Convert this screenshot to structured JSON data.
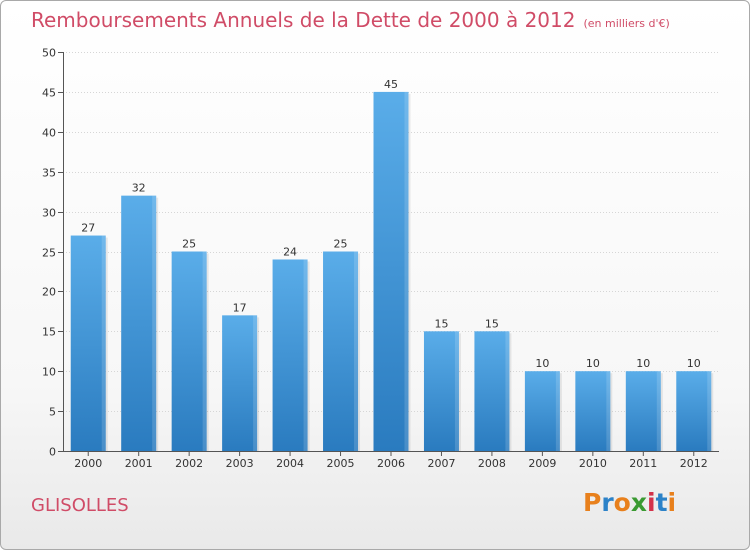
{
  "header": {
    "title": "Remboursements Annuels de la Dette de 2000 à 2012",
    "subtitle": "(en milliers d'€)"
  },
  "footer": {
    "commune": "GLISOLLES",
    "brand_letters": [
      "P",
      "r",
      "o",
      "x",
      "i",
      "t",
      "i"
    ],
    "brand_colors": [
      "#e8801c",
      "#2c82c8",
      "#e8801c",
      "#3a9a32",
      "#d4324a",
      "#2c82c8",
      "#e8801c"
    ]
  },
  "colors": {
    "title": "#d04c67",
    "bar_light": "#5aade9",
    "bar_dark": "#2a7bbf",
    "axis": "#555555",
    "grid": "#d6d6d6"
  },
  "chart_data": {
    "type": "bar",
    "categories": [
      "2000",
      "2001",
      "2002",
      "2003",
      "2004",
      "2005",
      "2006",
      "2007",
      "2008",
      "2009",
      "2010",
      "2011",
      "2012"
    ],
    "values": [
      27,
      32,
      25,
      17,
      24,
      25,
      45,
      15,
      15,
      10,
      10,
      10,
      10
    ],
    "value_labels": [
      "27",
      "32",
      "25",
      "17",
      "24",
      "25",
      "45",
      "15",
      "15",
      "10",
      "10",
      "10",
      "10"
    ],
    "yticks": [
      0,
      5,
      10,
      15,
      20,
      25,
      30,
      35,
      40,
      45,
      50
    ],
    "ytick_labels": [
      "0",
      "5",
      "10",
      "15",
      "20",
      "25",
      "30",
      "35",
      "40",
      "45",
      "50"
    ],
    "ylim": [
      0,
      50
    ],
    "grid": true
  }
}
